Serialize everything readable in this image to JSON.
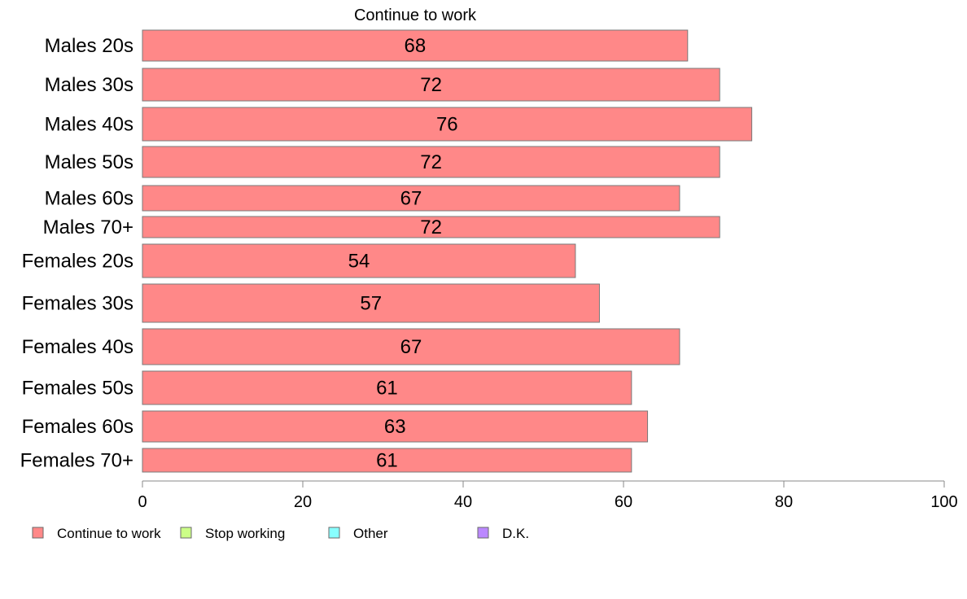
{
  "chart_data": {
    "type": "bar",
    "orientation": "horizontal",
    "title": "Continue to work",
    "xlabel": "",
    "ylabel": "",
    "xlim": [
      0,
      100
    ],
    "x_ticks": [
      "0",
      "20",
      "40",
      "60",
      "80",
      "100"
    ],
    "grid": false,
    "categories": [
      "Males 20s",
      "Males 30s",
      "Males 40s",
      "Males 50s",
      "Males 60s",
      "Males 70+",
      "Females 20s",
      "Females 30s",
      "Females 40s",
      "Females 50s",
      "Females 60s",
      "Females 70+"
    ],
    "series": [
      {
        "name": "Continue to work",
        "color": "#ff8888",
        "values": [
          68,
          72,
          76,
          72,
          67,
          72,
          54,
          57,
          67,
          61,
          63,
          61
        ],
        "labels": [
          "68",
          "72",
          "76",
          "72",
          "67",
          "72",
          "54",
          "57",
          "67",
          "61",
          "63",
          "61"
        ]
      }
    ],
    "legend": {
      "placement": "bottom-left",
      "items": [
        {
          "label": "Continue to work",
          "color": "#ff8888"
        },
        {
          "label": "Stop working",
          "color": "#ccff88"
        },
        {
          "label": "Other",
          "color": "#88ffff"
        },
        {
          "label": "D.K.",
          "color": "#bb88ff"
        }
      ]
    }
  }
}
